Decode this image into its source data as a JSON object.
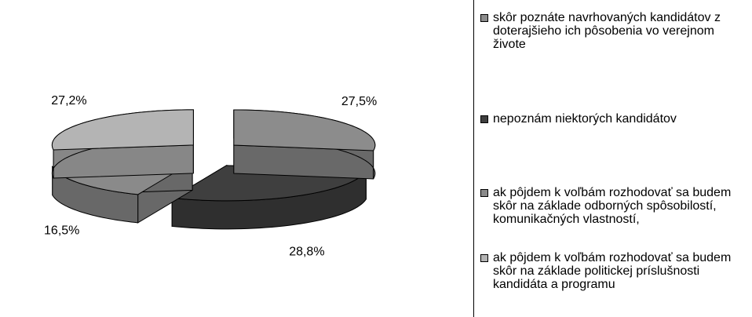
{
  "chart_data": {
    "type": "pie",
    "categories": [
      "skôr poznáte navrhovaných kandidátov z doterajšieho ich pôsobenia vo verejnom živote",
      "nepoznám niektorých kandidátov",
      "ak pôjdem k voľbám rozhodovať sa budem skôr na základe odborných spôsobilostí, komunikačných vlastností,",
      "ak pôjdem k voľbám rozhodovať sa budem skôr na základe politickej príslušnosti kandidáta a programu"
    ],
    "values": [
      27.5,
      28.8,
      16.5,
      27.2
    ],
    "value_labels": [
      "27,5%",
      "28,8%",
      "16,5%",
      "27,2%"
    ],
    "colors": [
      "#8c8c8c",
      "#3f3f3f",
      "#8a8a8a",
      "#b4b4b4"
    ],
    "legend": "right"
  }
}
